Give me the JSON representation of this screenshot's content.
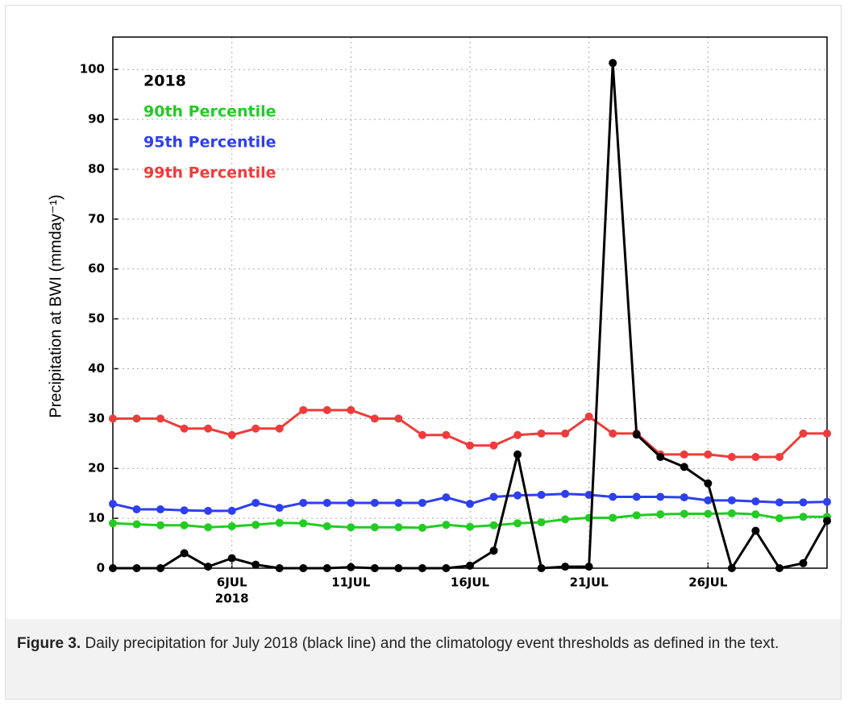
{
  "chart_data": {
    "type": "line",
    "ylabel": "Precipitation at BWI (mmday⁻¹)",
    "x": [
      1,
      2,
      3,
      4,
      5,
      6,
      7,
      8,
      9,
      10,
      11,
      12,
      13,
      14,
      15,
      16,
      17,
      18,
      19,
      20,
      21,
      22,
      23,
      24,
      25,
      26,
      27,
      28,
      29,
      30,
      31
    ],
    "xlim": [
      1,
      31
    ],
    "xticks": [
      {
        "value": 6,
        "label": "6JUL"
      },
      {
        "value": 11,
        "label": "11JUL"
      },
      {
        "value": 16,
        "label": "16JUL"
      },
      {
        "value": 21,
        "label": "21JUL"
      },
      {
        "value": 26,
        "label": "26JUL"
      }
    ],
    "x_year_label": "2018",
    "ylim": [
      0,
      106.5
    ],
    "yticks": [
      0,
      10,
      20,
      30,
      40,
      50,
      60,
      70,
      80,
      90,
      100
    ],
    "grid": true,
    "legend": "upper left",
    "series": [
      {
        "name": "2018",
        "color": "#000000",
        "values": [
          0,
          0,
          0,
          3,
          0.3,
          2,
          0.7,
          0,
          0,
          0,
          0.2,
          0,
          0,
          0,
          0,
          0.5,
          3.5,
          22.8,
          0,
          0.3,
          0.3,
          101.3,
          26.8,
          22.3,
          20.3,
          17,
          0,
          7.5,
          0,
          1,
          9.5
        ]
      },
      {
        "name": "90th Percentile",
        "color": "#22cc22",
        "values": [
          9,
          8.8,
          8.6,
          8.6,
          8.2,
          8.4,
          8.7,
          9.1,
          9,
          8.4,
          8.2,
          8.2,
          8.2,
          8.1,
          8.7,
          8.3,
          8.6,
          9,
          9.2,
          9.8,
          10.1,
          10.1,
          10.6,
          10.8,
          10.9,
          10.9,
          11,
          10.8,
          10,
          10.3,
          10.3
        ]
      },
      {
        "name": "95th Percentile",
        "color": "#2e3fef",
        "values": [
          12.9,
          11.8,
          11.8,
          11.6,
          11.5,
          11.5,
          13.1,
          12.1,
          13.1,
          13.1,
          13.1,
          13.1,
          13.1,
          13.1,
          14.2,
          12.9,
          14.3,
          14.6,
          14.7,
          14.9,
          14.7,
          14.3,
          14.3,
          14.3,
          14.2,
          13.6,
          13.6,
          13.4,
          13.2,
          13.2,
          13.3
        ]
      },
      {
        "name": "99th Percentile",
        "color": "#ef3b3b",
        "values": [
          30,
          30,
          30,
          28,
          28,
          26.7,
          28,
          28,
          31.7,
          31.7,
          31.7,
          30,
          30,
          26.7,
          26.7,
          24.6,
          24.6,
          26.7,
          27,
          27,
          30.4,
          27,
          27,
          22.8,
          22.8,
          22.8,
          22.3,
          22.3,
          22.3,
          27,
          27
        ]
      }
    ]
  },
  "caption": {
    "label": "Figure 3.",
    "text": " Daily precipitation for July 2018 (black line) and the climatology event thresholds as defined in the text."
  }
}
